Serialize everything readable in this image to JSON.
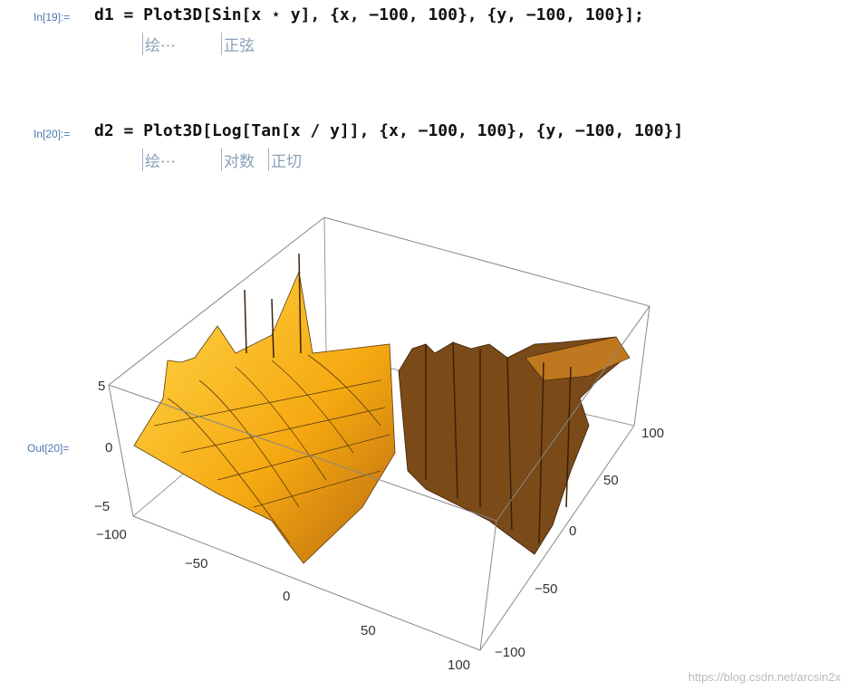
{
  "cells": [
    {
      "label": "In[19]:=",
      "code": "d1 = Plot3D[Sin[x ⋆ y], {x, −100, 100}, {y, −100, 100}];",
      "hints": [
        "绘⋯",
        "正弦"
      ]
    },
    {
      "label": "In[20]:=",
      "code": "d2 = Plot3D[Log[Tan[x / y]], {x, −100, 100}, {y, −100, 100}]",
      "hints": [
        "绘⋯",
        "对数",
        "正切"
      ]
    }
  ],
  "output": {
    "label": "Out[20]=",
    "z_ticks": [
      "5",
      "0",
      "−5"
    ],
    "x_ticks": [
      "−100",
      "−50",
      "0",
      "50",
      "100"
    ],
    "y_ticks": [
      "100",
      "50",
      "0",
      "−50",
      "−100"
    ]
  },
  "watermark": "https://blog.csdn.net/arcsin2x"
}
